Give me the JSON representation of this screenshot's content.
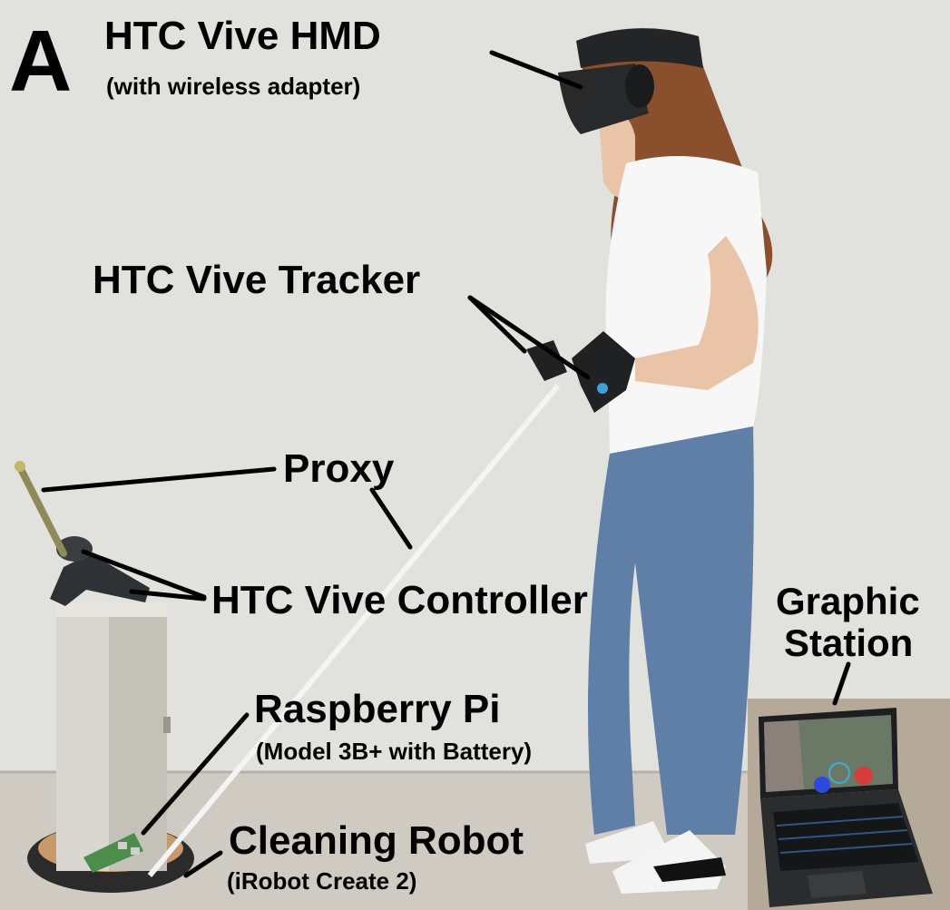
{
  "panel_letter": "A",
  "labels": {
    "hmd": {
      "title": "HTC Vive HMD",
      "subtitle": "(with wireless adapter)"
    },
    "tracker": {
      "title": "HTC Vive Tracker"
    },
    "proxy": {
      "title": "Proxy"
    },
    "controller": {
      "title": "HTC Vive Controller"
    },
    "graphic_station": {
      "line1": "Graphic",
      "line2": "Station"
    },
    "raspberry_pi": {
      "title": "Raspberry Pi",
      "subtitle": "(Model 3B+ with Battery)"
    },
    "robot": {
      "title": "Cleaning Robot",
      "subtitle": "(iRobot Create 2)"
    }
  },
  "colors": {
    "wall": "#e6e6e3",
    "floor": "#cfcbc3",
    "jeans": "#5f7fa6",
    "shirt": "#f7f7f7",
    "hair": "#8a4f2c",
    "box": "#d9d7cf",
    "laptop_bg": "#b5aa9a",
    "label_text": "#000000"
  }
}
